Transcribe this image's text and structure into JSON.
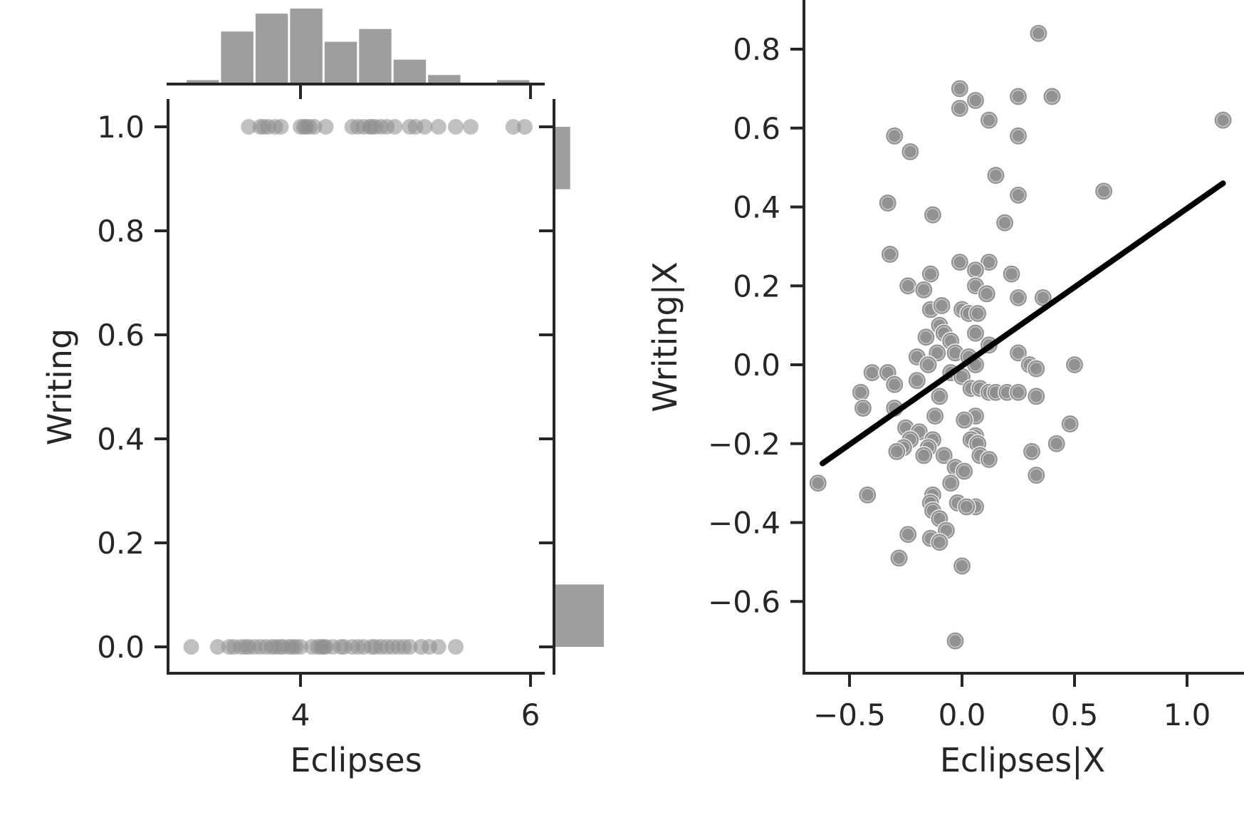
{
  "colors": {
    "marker": "#8c8c8c",
    "marker_light": "#b3b3b3",
    "hist": "#9e9e9e",
    "fit_line": "#000000",
    "axis": "#262626"
  },
  "chart_data": [
    {
      "type": "scatter",
      "panel": "joint",
      "xlabel": "Eclipses",
      "ylabel": "Writing",
      "xlim": [
        2.85,
        6.05
      ],
      "ylim": [
        -0.05,
        1.05
      ],
      "xticks": [
        4,
        6
      ],
      "xtick_labels": [
        "4",
        "6"
      ],
      "yticks": [
        0.0,
        0.2,
        0.4,
        0.6,
        0.8,
        1.0
      ],
      "ytick_labels": [
        "0.0",
        "0.2",
        "0.4",
        "0.6",
        "0.8",
        "1.0"
      ],
      "grid": false,
      "x_group_1": [
        3.55,
        3.65,
        3.68,
        3.72,
        3.78,
        3.83,
        4.0,
        4.03,
        4.05,
        4.08,
        4.12,
        4.22,
        4.45,
        4.5,
        4.55,
        4.6,
        4.62,
        4.65,
        4.7,
        4.75,
        4.82,
        4.95,
        5.0,
        5.08,
        5.2,
        5.35,
        5.48,
        5.85,
        5.95
      ],
      "x_group_0": [
        3.05,
        3.28,
        3.38,
        3.42,
        3.48,
        3.52,
        3.55,
        3.6,
        3.65,
        3.7,
        3.75,
        3.78,
        3.82,
        3.85,
        3.9,
        3.93,
        3.96,
        4.0,
        4.1,
        4.15,
        4.18,
        4.2,
        4.22,
        4.28,
        4.35,
        4.38,
        4.45,
        4.5,
        4.55,
        4.62,
        4.65,
        4.7,
        4.75,
        4.8,
        4.85,
        4.9,
        4.95,
        5.05,
        5.12,
        5.2,
        5.35
      ]
    },
    {
      "type": "bar",
      "panel": "marginal-x-histogram",
      "bin_edges": [
        3.0,
        3.3,
        3.6,
        3.9,
        4.2,
        4.5,
        4.8,
        5.1,
        5.4,
        5.7,
        6.0
      ],
      "values": [
        1,
        20,
        27,
        29,
        16,
        21,
        9,
        3,
        0,
        1
      ]
    },
    {
      "type": "bar",
      "panel": "marginal-y-histogram",
      "categories": [
        "0",
        "1"
      ],
      "values": [
        95,
        29
      ]
    },
    {
      "type": "scatter",
      "panel": "partial-regression",
      "xlabel": "Eclipses|X",
      "ylabel": "Writing|X",
      "xlim": [
        -0.72,
        1.28
      ],
      "ylim": [
        -0.78,
        0.92
      ],
      "xticks": [
        -0.5,
        0.0,
        0.5,
        1.0
      ],
      "xtick_labels": [
        "−0.5",
        "0.0",
        "0.5",
        "1.0"
      ],
      "yticks": [
        -0.6,
        -0.4,
        -0.2,
        0.0,
        0.2,
        0.4,
        0.6,
        0.8
      ],
      "ytick_labels": [
        "−0.6",
        "−0.4",
        "−0.2",
        "0.0",
        "0.2",
        "0.4",
        "0.6",
        "0.8"
      ],
      "grid": false,
      "points": [
        [
          0.34,
          0.84
        ],
        [
          -0.01,
          0.7
        ],
        [
          0.06,
          0.67
        ],
        [
          -0.01,
          0.65
        ],
        [
          0.25,
          0.68
        ],
        [
          0.4,
          0.68
        ],
        [
          0.12,
          0.62
        ],
        [
          -0.3,
          0.58
        ],
        [
          -0.23,
          0.54
        ],
        [
          0.25,
          0.58
        ],
        [
          1.16,
          0.62
        ],
        [
          0.15,
          0.48
        ],
        [
          0.25,
          0.43
        ],
        [
          0.63,
          0.44
        ],
        [
          -0.33,
          0.41
        ],
        [
          -0.13,
          0.38
        ],
        [
          0.19,
          0.36
        ],
        [
          -0.32,
          0.28
        ],
        [
          0.12,
          0.26
        ],
        [
          -0.01,
          0.26
        ],
        [
          0.06,
          0.24
        ],
        [
          -0.14,
          0.23
        ],
        [
          0.22,
          0.23
        ],
        [
          -0.24,
          0.2
        ],
        [
          -0.17,
          0.19
        ],
        [
          0.06,
          0.2
        ],
        [
          0.11,
          0.18
        ],
        [
          0.25,
          0.17
        ],
        [
          0.36,
          0.17
        ],
        [
          -0.14,
          0.14
        ],
        [
          -0.09,
          0.15
        ],
        [
          0.0,
          0.14
        ],
        [
          0.03,
          0.13
        ],
        [
          0.07,
          0.13
        ],
        [
          -0.1,
          0.1
        ],
        [
          -0.08,
          0.08
        ],
        [
          0.06,
          0.08
        ],
        [
          -0.16,
          0.07
        ],
        [
          -0.05,
          0.06
        ],
        [
          0.12,
          0.05
        ],
        [
          -0.11,
          0.03
        ],
        [
          -0.03,
          0.03
        ],
        [
          0.03,
          0.02
        ],
        [
          0.25,
          0.03
        ],
        [
          -0.2,
          0.02
        ],
        [
          -0.15,
          0.0
        ],
        [
          0.06,
          0.0
        ],
        [
          0.5,
          0.0
        ],
        [
          0.3,
          0.0
        ],
        [
          0.33,
          -0.01
        ],
        [
          -0.05,
          -0.02
        ],
        [
          0.0,
          -0.03
        ],
        [
          -0.4,
          -0.02
        ],
        [
          -0.33,
          -0.02
        ],
        [
          -0.2,
          -0.04
        ],
        [
          -0.3,
          -0.05
        ],
        [
          0.04,
          -0.06
        ],
        [
          0.08,
          -0.06
        ],
        [
          0.12,
          -0.07
        ],
        [
          0.15,
          -0.07
        ],
        [
          0.2,
          -0.07
        ],
        [
          0.25,
          -0.07
        ],
        [
          -0.45,
          -0.07
        ],
        [
          -0.1,
          -0.08
        ],
        [
          0.33,
          -0.08
        ],
        [
          -0.44,
          -0.11
        ],
        [
          -0.3,
          -0.11
        ],
        [
          -0.12,
          -0.13
        ],
        [
          0.06,
          -0.13
        ],
        [
          0.01,
          -0.14
        ],
        [
          0.48,
          -0.15
        ],
        [
          -0.25,
          -0.16
        ],
        [
          -0.19,
          -0.17
        ],
        [
          0.06,
          -0.18
        ],
        [
          0.04,
          -0.19
        ],
        [
          -0.13,
          -0.19
        ],
        [
          -0.23,
          -0.19
        ],
        [
          0.07,
          -0.2
        ],
        [
          0.42,
          -0.2
        ],
        [
          -0.26,
          -0.21
        ],
        [
          -0.15,
          -0.21
        ],
        [
          -0.29,
          -0.22
        ],
        [
          0.31,
          -0.22
        ],
        [
          -0.17,
          -0.23
        ],
        [
          -0.08,
          -0.23
        ],
        [
          0.08,
          -0.23
        ],
        [
          0.12,
          -0.24
        ],
        [
          -0.03,
          -0.26
        ],
        [
          0.01,
          -0.27
        ],
        [
          -0.64,
          -0.3
        ],
        [
          -0.05,
          -0.3
        ],
        [
          0.33,
          -0.28
        ],
        [
          -0.42,
          -0.33
        ],
        [
          -0.13,
          -0.33
        ],
        [
          -0.14,
          -0.35
        ],
        [
          -0.02,
          -0.35
        ],
        [
          0.06,
          -0.36
        ],
        [
          0.02,
          -0.36
        ],
        [
          -0.13,
          -0.37
        ],
        [
          -0.1,
          -0.39
        ],
        [
          -0.07,
          -0.42
        ],
        [
          -0.24,
          -0.43
        ],
        [
          -0.14,
          -0.44
        ],
        [
          -0.1,
          -0.45
        ],
        [
          -0.28,
          -0.49
        ],
        [
          0.0,
          -0.51
        ],
        [
          -0.03,
          -0.7
        ]
      ],
      "fit_line": {
        "x": [
          -0.62,
          1.16
        ],
        "y": [
          -0.25,
          0.46
        ]
      }
    }
  ]
}
